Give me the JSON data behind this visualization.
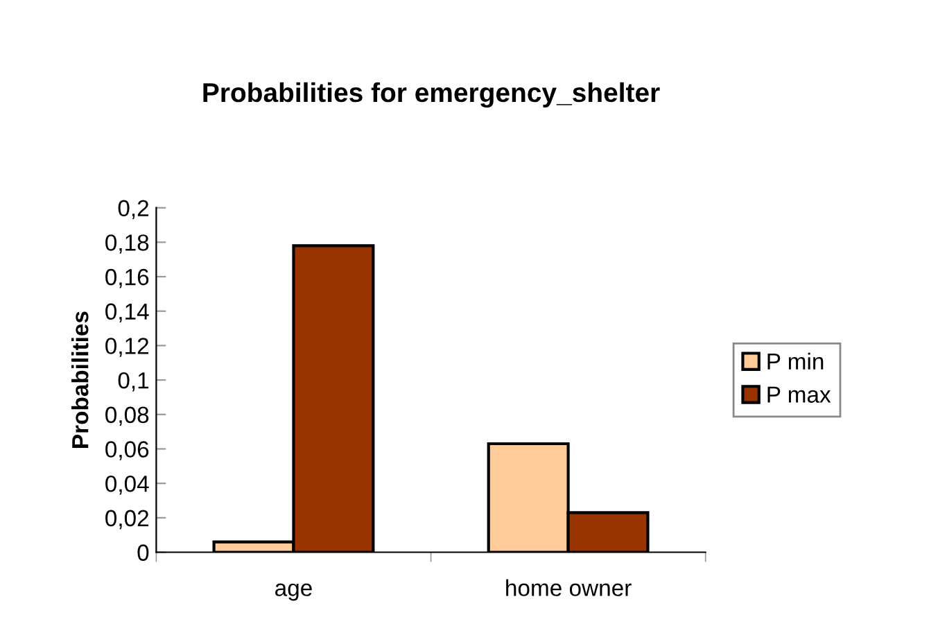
{
  "chart_data": {
    "type": "bar",
    "title": "Probabilities for emergency_shelter",
    "ylabel": "Probabilities",
    "categories": [
      "age",
      "home owner"
    ],
    "series": [
      {
        "name": "P min",
        "color": "#ffcc99",
        "values": [
          0.006,
          0.063
        ]
      },
      {
        "name": "P max",
        "color": "#993300",
        "values": [
          0.178,
          0.023
        ]
      }
    ],
    "ylim": [
      0,
      0.2
    ],
    "yticks": [
      {
        "value": 0,
        "label": "0"
      },
      {
        "value": 0.02,
        "label": "0,02"
      },
      {
        "value": 0.04,
        "label": "0,04"
      },
      {
        "value": 0.06,
        "label": "0,06"
      },
      {
        "value": 0.08,
        "label": "0,08"
      },
      {
        "value": 0.1,
        "label": "0,1"
      },
      {
        "value": 0.12,
        "label": "0,12"
      },
      {
        "value": 0.14,
        "label": "0,14"
      },
      {
        "value": 0.16,
        "label": "0,16"
      },
      {
        "value": 0.18,
        "label": "0,18"
      },
      {
        "value": 0.2,
        "label": "0,2"
      }
    ],
    "grid": false,
    "legend": "right"
  }
}
